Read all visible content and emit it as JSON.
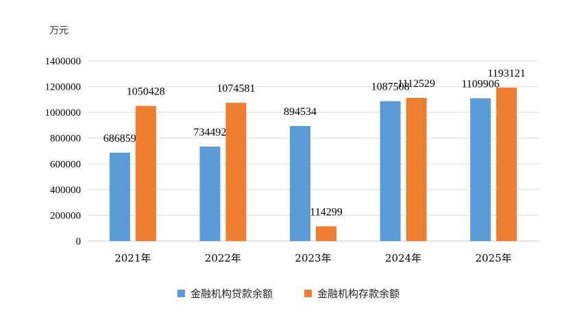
{
  "chart_data": {
    "type": "bar",
    "unit_label": "万元",
    "categories": [
      "2021年",
      "2022年",
      "2023年",
      "2024年",
      "2025年"
    ],
    "series": [
      {
        "name": "金融机构贷款余额",
        "color": "#5b9bd5",
        "values": [
          686859,
          734492,
          894534,
          1087508,
          1109906
        ]
      },
      {
        "name": "金融机构存款余额",
        "color": "#ed7d31",
        "values": [
          1050428,
          1074581,
          114299,
          1112529,
          1193121
        ]
      }
    ],
    "y_ticks": [
      "0",
      "200000",
      "400000",
      "600000",
      "800000",
      "1000000",
      "1200000",
      "1400000"
    ],
    "ylim": [
      0,
      1400000
    ],
    "grid": true,
    "legend_position": "bottom"
  }
}
